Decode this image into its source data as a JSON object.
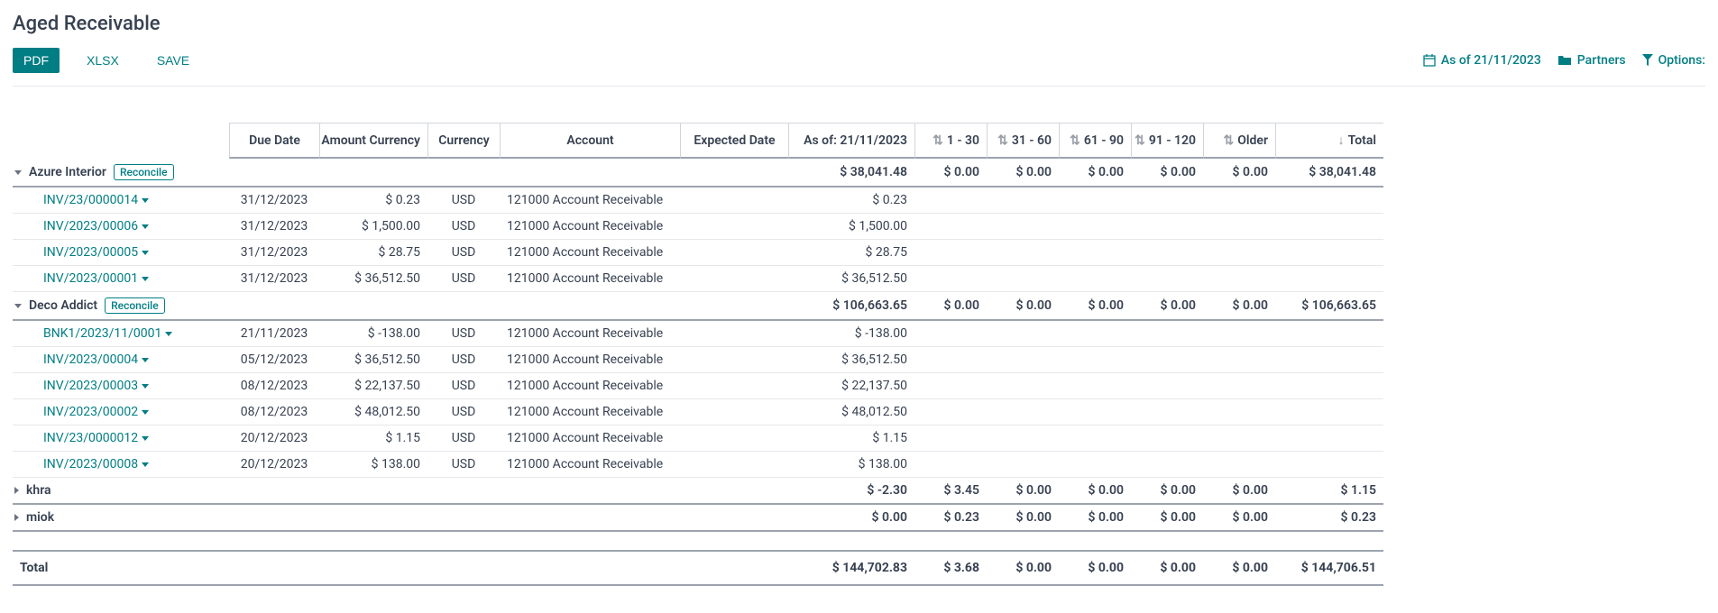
{
  "colors": {
    "teal": "#017e84",
    "text": "#374151",
    "border": "#d1d5db",
    "border_heavy": "#9ca3af"
  },
  "title": "Aged Receivable",
  "toolbar": {
    "pdf": "PDF",
    "xlsx": "XLSX",
    "save": "SAVE",
    "as_of": "As of 21/11/2023",
    "partners": "Partners",
    "options": "Options:"
  },
  "columns": {
    "due_date": "Due Date",
    "amount_currency": "Amount Currency",
    "currency": "Currency",
    "account": "Account",
    "expected_date": "Expected Date",
    "as_of": "As of: 21/11/2023",
    "b1": "1 - 30",
    "b2": "31 - 60",
    "b3": "61 - 90",
    "b4": "91 - 120",
    "older": "Older",
    "total": "Total"
  },
  "reconcile_label": "Reconcile",
  "groups": [
    {
      "name": "Azure Interior",
      "expanded": true,
      "reconcile": true,
      "summary": {
        "as_of": "$ 38,041.48",
        "b1": "$ 0.00",
        "b2": "$ 0.00",
        "b3": "$ 0.00",
        "b4": "$ 0.00",
        "older": "$ 0.00",
        "total": "$ 38,041.48"
      },
      "lines": [
        {
          "name": "INV/23/0000014",
          "due": "31/12/2023",
          "amount": "$ 0.23",
          "cur": "USD",
          "account": "121000 Account Receivable",
          "as_of": "$ 0.23"
        },
        {
          "name": "INV/2023/00006",
          "due": "31/12/2023",
          "amount": "$ 1,500.00",
          "cur": "USD",
          "account": "121000 Account Receivable",
          "as_of": "$ 1,500.00"
        },
        {
          "name": "INV/2023/00005",
          "due": "31/12/2023",
          "amount": "$ 28.75",
          "cur": "USD",
          "account": "121000 Account Receivable",
          "as_of": "$ 28.75"
        },
        {
          "name": "INV/2023/00001",
          "due": "31/12/2023",
          "amount": "$ 36,512.50",
          "cur": "USD",
          "account": "121000 Account Receivable",
          "as_of": "$ 36,512.50"
        }
      ]
    },
    {
      "name": "Deco Addict",
      "expanded": true,
      "reconcile": true,
      "summary": {
        "as_of": "$ 106,663.65",
        "b1": "$ 0.00",
        "b2": "$ 0.00",
        "b3": "$ 0.00",
        "b4": "$ 0.00",
        "older": "$ 0.00",
        "total": "$ 106,663.65"
      },
      "lines": [
        {
          "name": "BNK1/2023/11/0001",
          "due": "21/11/2023",
          "amount": "$ -138.00",
          "cur": "USD",
          "account": "121000 Account Receivable",
          "as_of": "$ -138.00"
        },
        {
          "name": "INV/2023/00004",
          "due": "05/12/2023",
          "amount": "$ 36,512.50",
          "cur": "USD",
          "account": "121000 Account Receivable",
          "as_of": "$ 36,512.50"
        },
        {
          "name": "INV/2023/00003",
          "due": "08/12/2023",
          "amount": "$ 22,137.50",
          "cur": "USD",
          "account": "121000 Account Receivable",
          "as_of": "$ 22,137.50"
        },
        {
          "name": "INV/2023/00002",
          "due": "08/12/2023",
          "amount": "$ 48,012.50",
          "cur": "USD",
          "account": "121000 Account Receivable",
          "as_of": "$ 48,012.50"
        },
        {
          "name": "INV/23/0000012",
          "due": "20/12/2023",
          "amount": "$ 1.15",
          "cur": "USD",
          "account": "121000 Account Receivable",
          "as_of": "$ 1.15"
        },
        {
          "name": "INV/2023/00008",
          "due": "20/12/2023",
          "amount": "$ 138.00",
          "cur": "USD",
          "account": "121000 Account Receivable",
          "as_of": "$ 138.00"
        }
      ]
    },
    {
      "name": "khra",
      "expanded": false,
      "reconcile": false,
      "summary": {
        "as_of": "$ -2.30",
        "b1": "$ 3.45",
        "b2": "$ 0.00",
        "b3": "$ 0.00",
        "b4": "$ 0.00",
        "older": "$ 0.00",
        "total": "$ 1.15"
      },
      "lines": []
    },
    {
      "name": "miok",
      "expanded": false,
      "reconcile": false,
      "summary": {
        "as_of": "$ 0.00",
        "b1": "$ 0.23",
        "b2": "$ 0.00",
        "b3": "$ 0.00",
        "b4": "$ 0.00",
        "older": "$ 0.00",
        "total": "$ 0.23"
      },
      "lines": []
    }
  ],
  "grand_total": {
    "label": "Total",
    "as_of": "$ 144,702.83",
    "b1": "$ 3.68",
    "b2": "$ 0.00",
    "b3": "$ 0.00",
    "b4": "$ 0.00",
    "older": "$ 0.00",
    "total": "$ 144,706.51"
  }
}
